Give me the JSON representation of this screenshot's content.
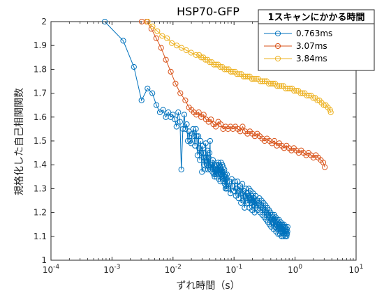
{
  "chart_data": {
    "type": "line",
    "title": "HSP70-GFP",
    "xlabel": "ずれ時間（s）",
    "ylabel": "規格化した自己相関関数",
    "x_scale": "log",
    "xlim": [
      0.0001,
      10
    ],
    "ylim": [
      1,
      2
    ],
    "x_ticks": [
      0.0001,
      0.001,
      0.01,
      0.1,
      1,
      10
    ],
    "x_tick_labels": [
      {
        "base": "10",
        "exp": "-4"
      },
      {
        "base": "10",
        "exp": "-3"
      },
      {
        "base": "10",
        "exp": "-2"
      },
      {
        "base": "10",
        "exp": "-1"
      },
      {
        "base": "10",
        "exp": "0"
      },
      {
        "base": "10",
        "exp": "1"
      }
    ],
    "y_ticks": [
      1,
      1.1,
      1.2,
      1.3,
      1.4,
      1.5,
      1.6,
      1.7,
      1.8,
      1.9,
      2
    ],
    "y_tick_labels": [
      "1",
      "1.1",
      "1.2",
      "1.3",
      "1.4",
      "1.5",
      "1.6",
      "1.7",
      "1.8",
      "1.9",
      "2"
    ],
    "grid": false,
    "legend_title": "1スキャンにかかる時間",
    "legend_position": "top-right",
    "series": [
      {
        "name": "0.763ms",
        "color": "#0072BD",
        "x": [
          0.000763,
          0.00153,
          0.00229,
          0.00305,
          0.00382,
          0.00458,
          0.00534,
          0.0061,
          0.00687,
          0.00763,
          0.00839,
          0.00916,
          0.00992,
          0.0107,
          0.0114,
          0.0122,
          0.013,
          0.0137,
          0.0145,
          0.0153,
          0.016,
          0.0168,
          0.0175,
          0.0183,
          0.0191,
          0.0198,
          0.0206,
          0.0214,
          0.0221,
          0.0229,
          0.0237,
          0.0244,
          0.0252,
          0.026,
          0.0267,
          0.0275,
          0.0282,
          0.029,
          0.0298,
          0.0305,
          0.0313,
          0.0321,
          0.0328,
          0.0336,
          0.0343,
          0.0351,
          0.0359,
          0.0366,
          0.0374,
          0.0382,
          0.0389,
          0.0397,
          0.0405,
          0.0412,
          0.042,
          0.0427,
          0.0435,
          0.0443,
          0.045,
          0.0458,
          0.0466,
          0.0473,
          0.0481,
          0.0488,
          0.0496,
          0.0504,
          0.0511,
          0.0519,
          0.0527,
          0.0534,
          0.0542,
          0.055,
          0.0557,
          0.0565,
          0.0572,
          0.058,
          0.0588,
          0.0595,
          0.0603,
          0.0611,
          0.0618,
          0.0626,
          0.0633,
          0.0641,
          0.0649,
          0.0656,
          0.0664,
          0.0672,
          0.0679,
          0.0687,
          0.0694,
          0.0702,
          0.071,
          0.0717,
          0.0725,
          0.0733,
          0.074,
          0.0748,
          0.0755,
          0.0763,
          0.0801,
          0.0839,
          0.0877,
          0.0916,
          0.0954,
          0.0992,
          0.103,
          0.107,
          0.111,
          0.114,
          0.118,
          0.122,
          0.126,
          0.13,
          0.134,
          0.137,
          0.141,
          0.145,
          0.149,
          0.153,
          0.156,
          0.16,
          0.164,
          0.168,
          0.172,
          0.175,
          0.179,
          0.183,
          0.187,
          0.191,
          0.195,
          0.198,
          0.202,
          0.206,
          0.21,
          0.214,
          0.217,
          0.221,
          0.225,
          0.229,
          0.237,
          0.244,
          0.252,
          0.26,
          0.267,
          0.275,
          0.282,
          0.29,
          0.298,
          0.305,
          0.313,
          0.321,
          0.328,
          0.336,
          0.343,
          0.351,
          0.359,
          0.366,
          0.374,
          0.382,
          0.389,
          0.397,
          0.405,
          0.412,
          0.42,
          0.427,
          0.435,
          0.443,
          0.45,
          0.458,
          0.466,
          0.473,
          0.481,
          0.488,
          0.496,
          0.504,
          0.511,
          0.519,
          0.527,
          0.534,
          0.542,
          0.55,
          0.557,
          0.565,
          0.572,
          0.58,
          0.588,
          0.595,
          0.603,
          0.611,
          0.618,
          0.626,
          0.633,
          0.641,
          0.649,
          0.656,
          0.664,
          0.672,
          0.679,
          0.687,
          0.694,
          0.702,
          0.71,
          0.717,
          0.725,
          0.733,
          0.74,
          0.748,
          0.755
        ],
        "y": [
          2.0,
          1.92,
          1.81,
          1.67,
          1.72,
          1.7,
          1.65,
          1.62,
          1.63,
          1.6,
          1.62,
          1.6,
          1.61,
          1.59,
          1.56,
          1.62,
          1.58,
          1.38,
          1.55,
          1.61,
          1.55,
          1.57,
          1.5,
          1.54,
          1.5,
          1.49,
          1.53,
          1.55,
          1.52,
          1.48,
          1.55,
          1.52,
          1.44,
          1.52,
          1.47,
          1.42,
          1.5,
          1.45,
          1.37,
          1.48,
          1.45,
          1.4,
          1.43,
          1.38,
          1.49,
          1.43,
          1.4,
          1.46,
          1.38,
          1.43,
          1.39,
          1.45,
          1.5,
          1.38,
          1.4,
          1.39,
          1.41,
          1.37,
          1.42,
          1.38,
          1.36,
          1.4,
          1.35,
          1.38,
          1.36,
          1.39,
          1.37,
          1.35,
          1.4,
          1.38,
          1.36,
          1.41,
          1.38,
          1.34,
          1.4,
          1.37,
          1.39,
          1.33,
          1.36,
          1.41,
          1.38,
          1.35,
          1.37,
          1.4,
          1.36,
          1.34,
          1.39,
          1.33,
          1.37,
          1.35,
          1.38,
          1.32,
          1.36,
          1.33,
          1.3,
          1.35,
          1.31,
          1.34,
          1.3,
          1.36,
          1.3,
          1.33,
          1.28,
          1.34,
          1.31,
          1.29,
          1.33,
          1.27,
          1.3,
          1.33,
          1.26,
          1.29,
          1.31,
          1.24,
          1.28,
          1.32,
          1.25,
          1.29,
          1.22,
          1.27,
          1.3,
          1.25,
          1.28,
          1.24,
          1.27,
          1.3,
          1.22,
          1.26,
          1.29,
          1.24,
          1.27,
          1.21,
          1.25,
          1.28,
          1.23,
          1.26,
          1.2,
          1.24,
          1.27,
          1.22,
          1.25,
          1.21,
          1.24,
          1.26,
          1.2,
          1.23,
          1.25,
          1.19,
          1.22,
          1.24,
          1.18,
          1.21,
          1.23,
          1.17,
          1.2,
          1.22,
          1.16,
          1.19,
          1.21,
          1.15,
          1.18,
          1.2,
          1.14,
          1.17,
          1.19,
          1.16,
          1.18,
          1.13,
          1.17,
          1.19,
          1.14,
          1.16,
          1.18,
          1.12,
          1.15,
          1.17,
          1.13,
          1.16,
          1.11,
          1.14,
          1.17,
          1.13,
          1.15,
          1.11,
          1.14,
          1.16,
          1.12,
          1.15,
          1.1,
          1.13,
          1.15,
          1.12,
          1.14,
          1.1,
          1.13,
          1.15,
          1.11,
          1.14,
          1.12,
          1.1,
          1.13,
          1.14,
          1.11,
          1.12,
          1.1,
          1.13,
          1.11,
          1.12,
          1.14
        ]
      },
      {
        "name": "3.07ms",
        "color": "#D95319",
        "x": [
          0.00307,
          0.00369,
          0.00442,
          0.00531,
          0.00637,
          0.00765,
          0.00918,
          0.011,
          0.0132,
          0.0159,
          0.0183,
          0.0201,
          0.022,
          0.0241,
          0.0264,
          0.029,
          0.0318,
          0.0348,
          0.0382,
          0.0419,
          0.0459,
          0.0503,
          0.0552,
          0.0605,
          0.0663,
          0.0727,
          0.0797,
          0.0874,
          0.0958,
          0.105,
          0.115,
          0.126,
          0.138,
          0.152,
          0.166,
          0.182,
          0.2,
          0.219,
          0.24,
          0.264,
          0.289,
          0.317,
          0.347,
          0.381,
          0.418,
          0.458,
          0.502,
          0.551,
          0.604,
          0.662,
          0.726,
          0.796,
          0.873,
          0.957,
          1.05,
          1.15,
          1.26,
          1.38,
          1.52,
          1.66,
          1.82,
          2.0,
          2.19,
          2.4,
          2.64,
          2.89,
          3.07
        ],
        "y": [
          2.0,
          2.0,
          1.97,
          1.93,
          1.89,
          1.84,
          1.79,
          1.74,
          1.7,
          1.67,
          1.64,
          1.63,
          1.62,
          1.61,
          1.62,
          1.6,
          1.61,
          1.59,
          1.58,
          1.59,
          1.57,
          1.56,
          1.58,
          1.57,
          1.55,
          1.56,
          1.55,
          1.56,
          1.55,
          1.56,
          1.55,
          1.54,
          1.56,
          1.54,
          1.53,
          1.54,
          1.53,
          1.52,
          1.53,
          1.52,
          1.51,
          1.5,
          1.51,
          1.5,
          1.49,
          1.5,
          1.48,
          1.49,
          1.48,
          1.47,
          1.48,
          1.47,
          1.46,
          1.47,
          1.46,
          1.45,
          1.46,
          1.45,
          1.44,
          1.45,
          1.44,
          1.43,
          1.44,
          1.43,
          1.42,
          1.41,
          1.39
        ]
      },
      {
        "name": "3.84ms",
        "color": "#EDB120",
        "x": [
          0.00384,
          0.00461,
          0.00553,
          0.00664,
          0.00797,
          0.00956,
          0.0115,
          0.0138,
          0.0165,
          0.0198,
          0.0238,
          0.0268,
          0.029,
          0.0314,
          0.034,
          0.0368,
          0.0399,
          0.0432,
          0.0468,
          0.0507,
          0.0549,
          0.0594,
          0.0643,
          0.0697,
          0.0755,
          0.0817,
          0.0885,
          0.0958,
          0.104,
          0.112,
          0.122,
          0.132,
          0.143,
          0.154,
          0.167,
          0.181,
          0.196,
          0.212,
          0.23,
          0.249,
          0.27,
          0.292,
          0.316,
          0.343,
          0.371,
          0.402,
          0.435,
          0.471,
          0.51,
          0.553,
          0.598,
          0.648,
          0.702,
          0.76,
          0.823,
          0.892,
          0.966,
          1.05,
          1.13,
          1.23,
          1.33,
          1.44,
          1.56,
          1.69,
          1.83,
          1.98,
          2.14,
          2.32,
          2.51,
          2.72,
          2.95,
          3.19,
          3.45,
          3.74,
          3.84
        ],
        "y": [
          2.0,
          1.98,
          1.96,
          1.94,
          1.93,
          1.91,
          1.9,
          1.89,
          1.88,
          1.87,
          1.86,
          1.86,
          1.85,
          1.85,
          1.84,
          1.84,
          1.83,
          1.83,
          1.82,
          1.82,
          1.82,
          1.81,
          1.81,
          1.8,
          1.8,
          1.8,
          1.79,
          1.79,
          1.79,
          1.78,
          1.78,
          1.78,
          1.77,
          1.77,
          1.77,
          1.77,
          1.76,
          1.76,
          1.76,
          1.76,
          1.75,
          1.75,
          1.75,
          1.75,
          1.74,
          1.74,
          1.74,
          1.74,
          1.73,
          1.73,
          1.73,
          1.73,
          1.72,
          1.72,
          1.72,
          1.72,
          1.71,
          1.71,
          1.71,
          1.7,
          1.7,
          1.7,
          1.69,
          1.69,
          1.69,
          1.68,
          1.68,
          1.67,
          1.67,
          1.66,
          1.65,
          1.65,
          1.64,
          1.63,
          1.62
        ]
      }
    ]
  }
}
